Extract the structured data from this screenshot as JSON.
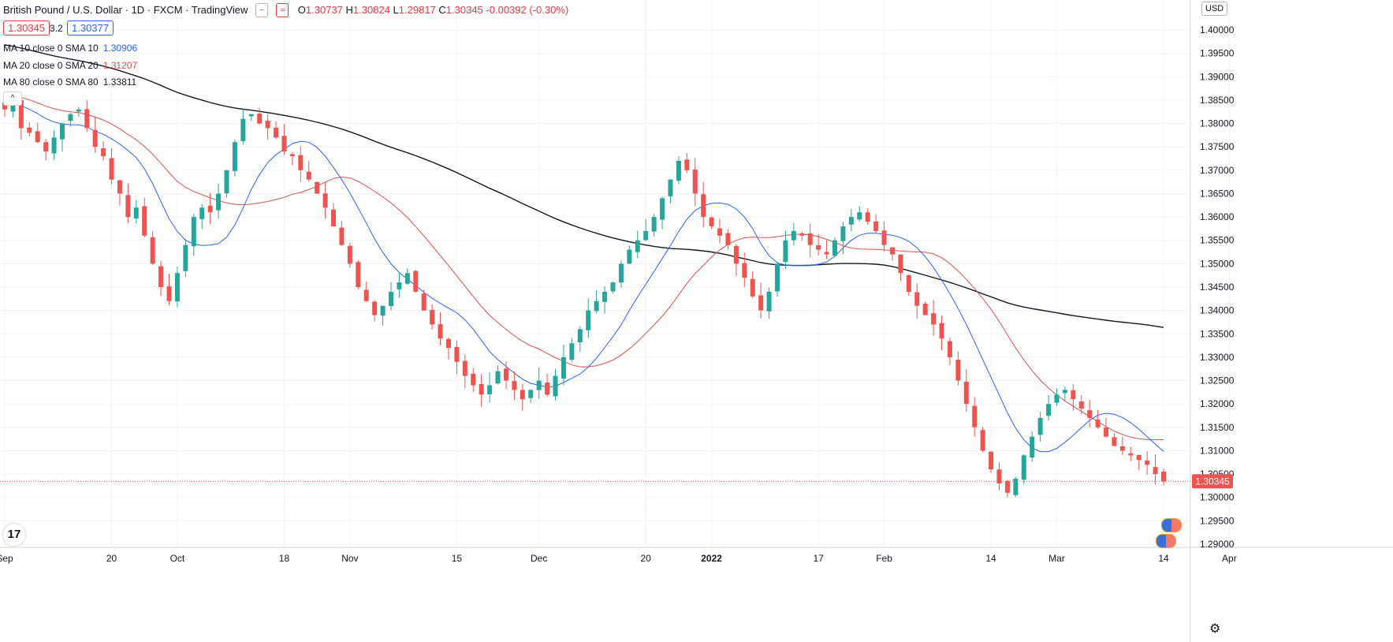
{
  "header": {
    "title": "British Pound / U.S. Dollar · 1D · FXCM · TradingView",
    "ohlc": {
      "o_label": "O",
      "o": "1.30737",
      "h_label": "H",
      "h": "1.30824",
      "l_label": "L",
      "l": "1.29817",
      "c_label": "C",
      "c": "1.30345",
      "change": "-0.00392 (-0.30%)"
    },
    "bid": "1.30345",
    "spread": "3.2",
    "ask": "1.30377",
    "ma": [
      {
        "label": "MA 10 close 0 SMA 10",
        "value": "1.30906",
        "color": "#2962ff"
      },
      {
        "label": "MA 20 close 0 SMA 20",
        "value": "1.31207",
        "color": "#e05050"
      },
      {
        "label": "MA 80 close 0 SMA 80",
        "value": "1.33811",
        "color": "#131722"
      }
    ],
    "collapse_glyph": "^",
    "chip1": "−",
    "chip2": "≈"
  },
  "currency": "USD",
  "logo": "17",
  "gear_glyph": "⚙",
  "chart_data": {
    "type": "candlestick",
    "y_ticks": [
      1.4,
      1.395,
      1.39,
      1.385,
      1.38,
      1.375,
      1.37,
      1.365,
      1.36,
      1.355,
      1.35,
      1.345,
      1.34,
      1.335,
      1.33,
      1.325,
      1.32,
      1.315,
      1.31,
      1.305,
      1.3,
      1.295,
      1.29
    ],
    "y_tick_labels": [
      "1.40000",
      "1.39500",
      "1.39000",
      "1.38500",
      "1.38000",
      "1.37500",
      "1.37000",
      "1.36500",
      "1.36000",
      "1.35500",
      "1.35000",
      "1.34500",
      "1.34000",
      "1.33500",
      "1.33000",
      "1.32500",
      "1.32000",
      "1.31500",
      "1.31000",
      "1.30500",
      "1.30000",
      "1.29500",
      "1.29000"
    ],
    "ylim": [
      1.288,
      1.403
    ],
    "x_tick_labels": [
      "Sep",
      "20",
      "Oct",
      "18",
      "Nov",
      "15",
      "Dec",
      "20",
      "2022",
      "17",
      "Feb",
      "14",
      "Mar",
      "14",
      "Apr"
    ],
    "x_tick_bar_index": [
      0,
      13,
      21,
      34,
      42,
      55,
      65,
      78,
      86,
      99,
      107,
      120,
      128,
      141,
      149
    ],
    "x_bold": [
      "2022"
    ],
    "last_price": 1.30345,
    "last_price_label": "1.30345",
    "up_color": "#26a69a",
    "down_color": "#ef5350",
    "close_path": [
      1.383,
      1.385,
      1.379,
      1.378,
      1.376,
      1.374,
      1.377,
      1.38,
      1.382,
      1.383,
      1.379,
      1.375,
      1.373,
      1.368,
      1.365,
      1.36,
      1.362,
      1.356,
      1.35,
      1.345,
      1.342,
      1.348,
      1.354,
      1.36,
      1.362,
      1.361,
      1.365,
      1.37,
      1.376,
      1.381,
      1.382,
      1.38,
      1.379,
      1.377,
      1.374,
      1.373,
      1.37,
      1.368,
      1.365,
      1.362,
      1.358,
      1.354,
      1.35,
      1.345,
      1.342,
      1.339,
      1.341,
      1.344,
      1.346,
      1.348,
      1.344,
      1.34,
      1.337,
      1.334,
      1.332,
      1.329,
      1.326,
      1.324,
      1.322,
      1.324,
      1.327,
      1.325,
      1.323,
      1.321,
      1.323,
      1.325,
      1.322,
      1.326,
      1.33,
      1.333,
      1.336,
      1.34,
      1.342,
      1.344,
      1.346,
      1.35,
      1.353,
      1.355,
      1.357,
      1.36,
      1.364,
      1.368,
      1.372,
      1.37,
      1.365,
      1.36,
      1.358,
      1.356,
      1.354,
      1.35,
      1.347,
      1.343,
      1.34,
      1.344,
      1.35,
      1.355,
      1.357,
      1.356,
      1.354,
      1.353,
      1.352,
      1.355,
      1.358,
      1.36,
      1.361,
      1.359,
      1.357,
      1.354,
      1.352,
      1.348,
      1.344,
      1.341,
      1.339,
      1.337,
      1.334,
      1.33,
      1.325,
      1.32,
      1.315,
      1.31,
      1.306,
      1.303,
      1.301,
      1.304,
      1.309,
      1.313,
      1.317,
      1.32,
      1.322,
      1.323,
      1.321,
      1.319,
      1.317,
      1.315,
      1.313,
      1.311,
      1.31,
      1.309,
      1.308,
      1.307,
      1.305,
      1.3034
    ]
  }
}
